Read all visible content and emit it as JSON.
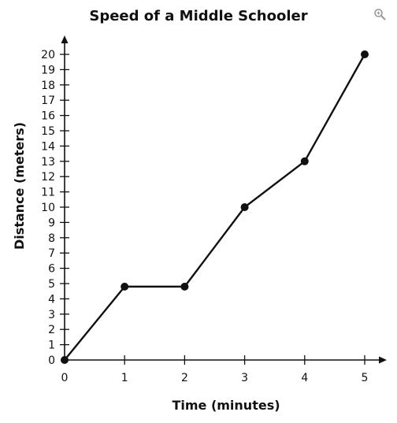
{
  "zoom_icon": "magnifier-plus-icon",
  "chart_data": {
    "type": "line",
    "title": "Speed of a Middle Schooler",
    "xlabel": "Time (minutes)",
    "ylabel": "Distance (meters)",
    "xlim": [
      0,
      5
    ],
    "ylim": [
      0,
      20
    ],
    "x_ticks": [
      "0",
      "1",
      "2",
      "3",
      "4",
      "5"
    ],
    "y_ticks": [
      "0",
      "1",
      "2",
      "3",
      "4",
      "5",
      "6",
      "7",
      "8",
      "9",
      "10",
      "11",
      "12",
      "13",
      "14",
      "15",
      "16",
      "17",
      "18",
      "19",
      "20"
    ],
    "grid": false,
    "series": [
      {
        "x": [
          0,
          1,
          2,
          3,
          4,
          5
        ],
        "y": [
          0,
          4.8,
          4.8,
          10,
          13,
          20
        ]
      }
    ],
    "line_color": "#111111",
    "axis_color": "#111111"
  }
}
